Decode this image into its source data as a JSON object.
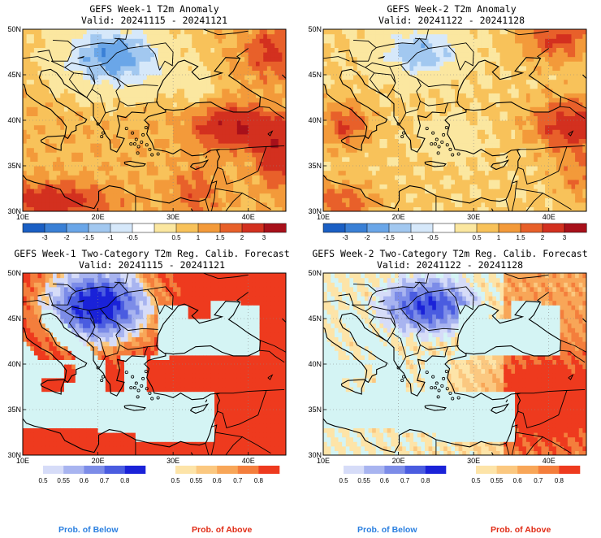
{
  "panels": [
    {
      "title": "GEFS Week-1 T2m Anomaly",
      "valid": "Valid: 20241115 - 20241121",
      "kind": "anomaly",
      "week": 1
    },
    {
      "title": "GEFS Week-2 T2m Anomaly",
      "valid": "Valid: 20241122 - 20241128",
      "kind": "anomaly",
      "week": 2
    },
    {
      "title": "GEFS Week-1 Two-Category T2m Reg. Calib. Forecast",
      "valid": "Valid: 20241115 - 20241121",
      "kind": "probability",
      "week": 1
    },
    {
      "title": "GEFS Week-2 Two-Category T2m Reg. Calib. Forecast",
      "valid": "Valid: 20241122 - 20241128",
      "kind": "probability",
      "week": 2
    }
  ],
  "axes": {
    "lat_labels": [
      "50N",
      "45N",
      "40N",
      "35N",
      "30N"
    ],
    "lon_labels": [
      "10E",
      "20E",
      "30E",
      "40E"
    ]
  },
  "anomaly_colorbar": {
    "labels": [
      "-3",
      "-2",
      "-1.5",
      "-1",
      "-0.5",
      "0.5",
      "1",
      "1.5",
      "2",
      "3"
    ],
    "colors": [
      "#1a5fc4",
      "#3a80d6",
      "#6aa6e8",
      "#a2c8f0",
      "#d6e8fa",
      "#ffffff",
      "#fbe7a0",
      "#f8c25a",
      "#f39a3a",
      "#e8602a",
      "#d3301f",
      "#a8101a"
    ]
  },
  "prob_colorbar": {
    "below_labels": [
      "0.5",
      "0.55",
      "0.6",
      "0.7",
      "0.8"
    ],
    "above_labels": [
      "0.5",
      "0.55",
      "0.6",
      "0.7",
      "0.8"
    ],
    "below_colors": [
      "#d6dcf8",
      "#a8b4f0",
      "#7c8ce8",
      "#4a5ce0",
      "#1a22d8"
    ],
    "above_colors": [
      "#fde4a8",
      "#fbc880",
      "#f8a658",
      "#f47e3c",
      "#ee3a1e"
    ],
    "neutral_color": "#d4f4f4"
  },
  "footer": {
    "below": "Prob. of Below",
    "above": "Prob. of Above",
    "below_color": "#2a7fe0",
    "above_color": "#e02a14"
  }
}
